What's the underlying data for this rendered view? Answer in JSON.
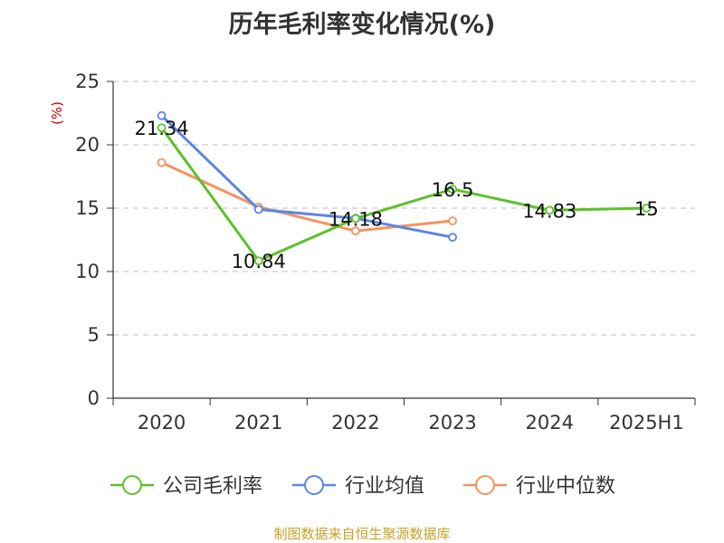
{
  "chart_data": {
    "type": "line",
    "title": "历年毛利率变化情况(%)",
    "ylabel": "(%)",
    "categories": [
      "2020",
      "2021",
      "2022",
      "2023",
      "2024",
      "2025H1"
    ],
    "ylim": [
      0,
      25
    ],
    "yticks": [
      0,
      5,
      10,
      15,
      20,
      25
    ],
    "grid": true,
    "legend_position": "bottom",
    "series": [
      {
        "name": "公司毛利率",
        "color": "#5cc12a",
        "values": [
          21.34,
          10.84,
          14.18,
          16.5,
          14.83,
          15
        ],
        "labels": [
          "21.34",
          "10.84",
          "14.18",
          "16.5",
          "14.83",
          "15"
        ]
      },
      {
        "name": "行业均值",
        "color": "#5b86e5",
        "values": [
          22.3,
          14.9,
          14.2,
          12.7,
          null,
          null
        ]
      },
      {
        "name": "行业中位数",
        "color": "#f5935e",
        "values": [
          18.6,
          15.1,
          13.2,
          14.0,
          null,
          null
        ]
      }
    ]
  },
  "colors": {
    "unit_label": "#cc0000",
    "grid": "#cccccc",
    "axis": "#333333",
    "source_note": "#c7a22a"
  },
  "source_note": "制图数据来自恒生聚源数据库"
}
